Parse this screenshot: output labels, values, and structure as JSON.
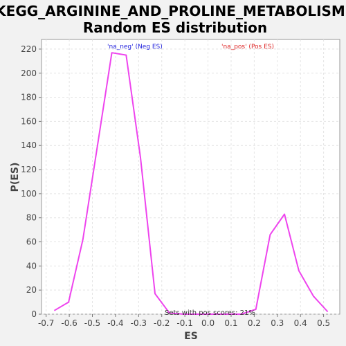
{
  "chart_data": {
    "type": "line",
    "title_line1": "KEGG_ARGININE_AND_PROLINE_METABOLISM:",
    "title_line2": "Random ES distribution",
    "xlabel": "ES",
    "ylabel": "P(ES)",
    "xlim": [
      -0.72,
      0.57
    ],
    "ylim": [
      0,
      228
    ],
    "xticks": [
      -0.7,
      -0.6,
      -0.5,
      -0.4,
      -0.3,
      -0.2,
      -0.1,
      0.0,
      0.1,
      0.2,
      0.3,
      0.4,
      0.5
    ],
    "xtick_labels": [
      "-0.7",
      "-0.6",
      "-0.5",
      "-0.4",
      "-0.3",
      "-0.2",
      "-0.1",
      "0.0",
      "0.1",
      "0.2",
      "0.3",
      "0.4",
      "0.5"
    ],
    "yticks": [
      0,
      20,
      40,
      60,
      80,
      100,
      120,
      140,
      160,
      180,
      200,
      220
    ],
    "ytick_labels": [
      "0",
      "20",
      "40",
      "60",
      "80",
      "100",
      "120",
      "140",
      "160",
      "180",
      "200",
      "220"
    ],
    "grid": true,
    "series": [
      {
        "name": "ES distribution",
        "color": "#ee44ee",
        "x": [
          -0.665,
          -0.603,
          -0.541,
          -0.478,
          -0.416,
          -0.354,
          -0.292,
          -0.229,
          -0.167,
          -0.105,
          -0.043,
          0.02,
          0.082,
          0.144,
          0.207,
          0.269,
          0.331,
          0.393,
          0.456,
          0.518
        ],
        "y": [
          3,
          10,
          62,
          140,
          217,
          215,
          130,
          17,
          1,
          0,
          0,
          0,
          0,
          0,
          4,
          66,
          83,
          36,
          15,
          2
        ]
      }
    ],
    "legend": [
      {
        "label": "'na_neg' (Neg ES)",
        "color": "#2222dd"
      },
      {
        "label": "'na_pos' (Pos ES)",
        "color": "#dd2222"
      }
    ],
    "annotation": "Sets with pos scores: 21%"
  }
}
